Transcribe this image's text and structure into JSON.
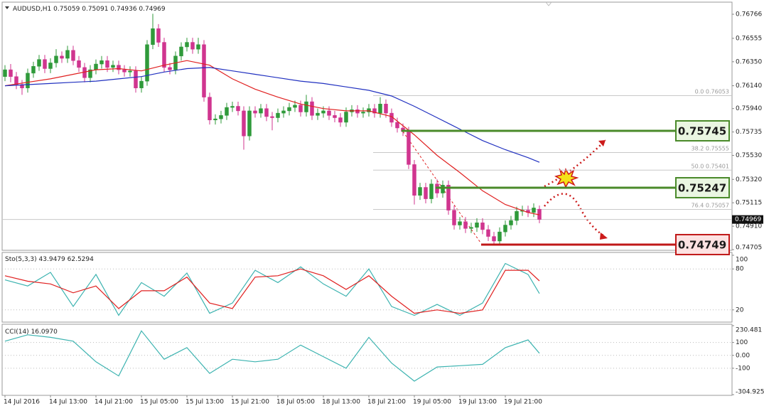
{
  "chart_data": [
    {
      "type": "candlestick",
      "title": "AUDUSD,H1",
      "categories": [
        "14 Jul 2016",
        null,
        null,
        null,
        null,
        null,
        null,
        null,
        "14 Jul 13:00",
        null,
        null,
        null,
        null,
        null,
        null,
        null,
        "14 Jul 21:00",
        null,
        null,
        null,
        null,
        null,
        null,
        null,
        "15 Jul 05:00",
        null,
        null,
        null,
        null,
        null,
        null,
        null,
        "15 Jul 13:00",
        null,
        null,
        null,
        null,
        null,
        null,
        null,
        "15 Jul 21:00",
        null,
        null,
        null,
        null,
        null,
        null,
        null,
        "18 Jul 05:00",
        null,
        null,
        null,
        null,
        null,
        null,
        null,
        "18 Jul 13:00",
        null,
        null,
        null,
        null,
        null,
        null,
        null,
        "18 Jul 21:00",
        null,
        null,
        null,
        null,
        null,
        null,
        null,
        "19 Jul 05:00",
        null,
        null,
        null,
        null,
        null,
        null,
        null,
        "19 Jul 13:00",
        null,
        null,
        null,
        null,
        null,
        null,
        null,
        "19 Jul 21:00",
        null,
        null,
        null,
        null,
        null,
        null
      ],
      "ohlc": [
        [
          0.7622,
          0.7632,
          0.7618,
          0.7628
        ],
        [
          0.7628,
          0.7633,
          0.7617,
          0.7622
        ],
        [
          0.7622,
          0.7626,
          0.7611,
          0.7615
        ],
        [
          0.7615,
          0.7619,
          0.7606,
          0.7612
        ],
        [
          0.7612,
          0.7629,
          0.7608,
          0.7625
        ],
        [
          0.7625,
          0.7635,
          0.7621,
          0.7631
        ],
        [
          0.7631,
          0.7641,
          0.7627,
          0.7637
        ],
        [
          0.7637,
          0.7641,
          0.7625,
          0.7629
        ],
        [
          0.7629,
          0.7638,
          0.7625,
          0.7634
        ],
        [
          0.7634,
          0.7646,
          0.763,
          0.764
        ],
        [
          0.764,
          0.7644,
          0.7634,
          0.7638
        ],
        [
          0.7638,
          0.7649,
          0.7634,
          0.7645
        ],
        [
          0.7645,
          0.7649,
          0.7632,
          0.7636
        ],
        [
          0.7636,
          0.764,
          0.7626,
          0.763
        ],
        [
          0.763,
          0.7634,
          0.7617,
          0.7621
        ],
        [
          0.7621,
          0.7632,
          0.7617,
          0.7628
        ],
        [
          0.7628,
          0.7637,
          0.7624,
          0.7633
        ],
        [
          0.7633,
          0.764,
          0.7629,
          0.7636
        ],
        [
          0.7636,
          0.764,
          0.7626,
          0.763
        ],
        [
          0.763,
          0.7636,
          0.7626,
          0.7632
        ],
        [
          0.7632,
          0.7636,
          0.7624,
          0.7628
        ],
        [
          0.7628,
          0.7632,
          0.7622,
          0.7626
        ],
        [
          0.7626,
          0.7631,
          0.7622,
          0.7627
        ],
        [
          0.7627,
          0.7631,
          0.7608,
          0.7612
        ],
        [
          0.7612,
          0.7622,
          0.7608,
          0.7618
        ],
        [
          0.7618,
          0.7654,
          0.7614,
          0.765
        ],
        [
          0.765,
          0.7677,
          0.7646,
          0.7664
        ],
        [
          0.7664,
          0.7668,
          0.7648,
          0.7652
        ],
        [
          0.7652,
          0.7656,
          0.7626,
          0.763
        ],
        [
          0.763,
          0.7634,
          0.7624,
          0.7628
        ],
        [
          0.7628,
          0.7644,
          0.7624,
          0.764
        ],
        [
          0.764,
          0.7652,
          0.7636,
          0.7648
        ],
        [
          0.7648,
          0.7656,
          0.7644,
          0.7652
        ],
        [
          0.7652,
          0.7656,
          0.7642,
          0.7646
        ],
        [
          0.7646,
          0.7656,
          0.7642,
          0.765
        ],
        [
          0.765,
          0.7654,
          0.76,
          0.7604
        ],
        [
          0.7604,
          0.7608,
          0.758,
          0.7584
        ],
        [
          0.7584,
          0.7589,
          0.758,
          0.7585
        ],
        [
          0.7585,
          0.7592,
          0.7581,
          0.7588
        ],
        [
          0.7588,
          0.7599,
          0.7584,
          0.7595
        ],
        [
          0.7595,
          0.76,
          0.7591,
          0.7596
        ],
        [
          0.7596,
          0.76,
          0.7588,
          0.7592
        ],
        [
          0.7592,
          0.7596,
          0.7558,
          0.757
        ],
        [
          0.757,
          0.7596,
          0.7566,
          0.7592
        ],
        [
          0.7592,
          0.7596,
          0.7586,
          0.759
        ],
        [
          0.759,
          0.7598,
          0.7586,
          0.7594
        ],
        [
          0.7594,
          0.7598,
          0.7583,
          0.7587
        ],
        [
          0.7587,
          0.7591,
          0.7575,
          0.7586
        ],
        [
          0.7586,
          0.7594,
          0.7582,
          0.759
        ],
        [
          0.759,
          0.7596,
          0.7586,
          0.7592
        ],
        [
          0.7592,
          0.7599,
          0.7588,
          0.7595
        ],
        [
          0.7595,
          0.7601,
          0.7591,
          0.7597
        ],
        [
          0.7597,
          0.7601,
          0.7587,
          0.7591
        ],
        [
          0.7591,
          0.7606,
          0.7587,
          0.76
        ],
        [
          0.76,
          0.7604,
          0.7584,
          0.7588
        ],
        [
          0.7588,
          0.7594,
          0.7584,
          0.759
        ],
        [
          0.759,
          0.7596,
          0.7586,
          0.7592
        ],
        [
          0.7592,
          0.7596,
          0.7584,
          0.7588
        ],
        [
          0.7588,
          0.7592,
          0.7582,
          0.7586
        ],
        [
          0.7586,
          0.759,
          0.7578,
          0.7582
        ],
        [
          0.7582,
          0.7595,
          0.7578,
          0.7591
        ],
        [
          0.7591,
          0.7597,
          0.7587,
          0.7593
        ],
        [
          0.7593,
          0.7597,
          0.7586,
          0.759
        ],
        [
          0.759,
          0.7595,
          0.7586,
          0.7591
        ],
        [
          0.7591,
          0.7598,
          0.7587,
          0.7594
        ],
        [
          0.7594,
          0.7598,
          0.7586,
          0.759
        ],
        [
          0.759,
          0.7604,
          0.7586,
          0.7598
        ],
        [
          0.7598,
          0.7602,
          0.7586,
          0.759
        ],
        [
          0.759,
          0.7594,
          0.7578,
          0.7582
        ],
        [
          0.7582,
          0.7586,
          0.7573,
          0.7577
        ],
        [
          0.7577,
          0.7581,
          0.757,
          0.7574
        ],
        [
          0.7574,
          0.7578,
          0.7541,
          0.7545
        ],
        [
          0.7545,
          0.7549,
          0.751,
          0.7518
        ],
        [
          0.7518,
          0.7529,
          0.7514,
          0.7525
        ],
        [
          0.7525,
          0.7529,
          0.7511,
          0.7515
        ],
        [
          0.7515,
          0.7532,
          0.7511,
          0.7528
        ],
        [
          0.7528,
          0.7532,
          0.7516,
          0.752
        ],
        [
          0.752,
          0.7531,
          0.7516,
          0.7527
        ],
        [
          0.7527,
          0.7531,
          0.7501,
          0.7505
        ],
        [
          0.7505,
          0.7509,
          0.7488,
          0.7492
        ],
        [
          0.7492,
          0.7499,
          0.7488,
          0.7495
        ],
        [
          0.7495,
          0.7499,
          0.7485,
          0.7489
        ],
        [
          0.7489,
          0.7494,
          0.7485,
          0.749
        ],
        [
          0.749,
          0.7498,
          0.7486,
          0.7494
        ],
        [
          0.7494,
          0.7498,
          0.7484,
          0.7488
        ],
        [
          0.7488,
          0.7492,
          0.7478,
          0.7482
        ],
        [
          0.7482,
          0.7486,
          0.7474,
          0.7478
        ],
        [
          0.7478,
          0.749,
          0.7474,
          0.7486
        ],
        [
          0.7486,
          0.7496,
          0.7482,
          0.7492
        ],
        [
          0.7492,
          0.75,
          0.7488,
          0.7496
        ],
        [
          0.7496,
          0.7508,
          0.7492,
          0.7504
        ],
        [
          0.7504,
          0.7509,
          0.75,
          0.7505
        ],
        [
          0.7505,
          0.7509,
          0.7499,
          0.7503
        ],
        [
          0.7503,
          0.7511,
          0.7499,
          0.7507
        ],
        [
          0.75059,
          0.75091,
          0.74936,
          0.74969
        ]
      ],
      "up_color": "#2f9a3a",
      "down_color": "#d0358f",
      "series": [
        {
          "color": "#e02020",
          "x": [
            0,
            4,
            8,
            12,
            16,
            20,
            24,
            28,
            32,
            36,
            40,
            44,
            48,
            52,
            56,
            60,
            64,
            68,
            72,
            76,
            80,
            84,
            88,
            92,
            94
          ],
          "values": [
            0.7614,
            0.7617,
            0.762,
            0.7624,
            0.7628,
            0.7629,
            0.7627,
            0.7632,
            0.7636,
            0.7632,
            0.762,
            0.7611,
            0.7604,
            0.7598,
            0.7594,
            0.7592,
            0.7592,
            0.7587,
            0.7571,
            0.7553,
            0.7538,
            0.7522,
            0.751,
            0.7503,
            0.7501
          ]
        },
        {
          "color": "#2030c0",
          "x": [
            0,
            4,
            8,
            12,
            16,
            20,
            24,
            28,
            32,
            36,
            40,
            44,
            48,
            52,
            56,
            60,
            64,
            68,
            72,
            76,
            80,
            84,
            88,
            92,
            94
          ],
          "values": [
            0.7614,
            0.7615,
            0.7616,
            0.7617,
            0.7618,
            0.762,
            0.7622,
            0.7626,
            0.7629,
            0.763,
            0.7627,
            0.7624,
            0.7621,
            0.7618,
            0.7616,
            0.7613,
            0.761,
            0.7605,
            0.7596,
            0.7586,
            0.7576,
            0.7566,
            0.7558,
            0.7551,
            0.7547
          ]
        }
      ],
      "fib": [
        {
          "label": "0.0",
          "value": 0.76053
        },
        {
          "label": "38.2",
          "value": 0.75555
        },
        {
          "label": "50.0",
          "value": 0.75401
        },
        {
          "label": "76.4",
          "value": 0.75057
        }
      ],
      "levels": [
        {
          "value": 0.75745,
          "color": "#4a8a2a",
          "fill": "#eaf6e2"
        },
        {
          "value": 0.75247,
          "color": "#4a8a2a",
          "fill": "#eaf6e2"
        },
        {
          "value": 0.74749,
          "color": "#c01818",
          "fill": "#fde2e2"
        }
      ],
      "ylim": [
        0.74699,
        0.76872
      ],
      "yticks": [
        0.76766,
        0.76555,
        {
          "value": 0.7635,
          "label": "0.76350"
        },
        {
          "value": 0.7614,
          "label": "0.76140"
        },
        {
          "value": 0.7594,
          "label": "0.75940"
        },
        0.75735,
        {
          "value": 0.7553,
          "label": "0.75530"
        },
        {
          "value": 0.7532,
          "label": "0.75320"
        },
        0.75115,
        {
          "value": 0.7491,
          "label": "0.74910"
        },
        0.74705
      ],
      "grid": false
    },
    {
      "type": "line",
      "title": "Sto(5,3,3)",
      "series": [
        {
          "color": "#3cb3b0",
          "x": [
            0,
            4,
            8,
            12,
            16,
            20,
            24,
            28,
            32,
            36,
            40,
            44,
            48,
            52,
            56,
            60,
            64,
            68,
            72,
            76,
            80,
            84,
            88,
            92,
            94
          ],
          "values": [
            64,
            55,
            75,
            25,
            72,
            12,
            60,
            40,
            74,
            15,
            30,
            78,
            60,
            83,
            58,
            40,
            80,
            25,
            12,
            28,
            12,
            30,
            88,
            72,
            43.9479
          ]
        },
        {
          "color": "#e02020",
          "x": [
            0,
            4,
            8,
            12,
            16,
            20,
            24,
            28,
            32,
            36,
            40,
            44,
            48,
            52,
            56,
            60,
            64,
            68,
            72,
            76,
            80,
            84,
            88,
            92,
            94
          ],
          "values": [
            70,
            62,
            58,
            45,
            55,
            22,
            48,
            48,
            68,
            30,
            22,
            68,
            70,
            80,
            70,
            50,
            70,
            40,
            15,
            20,
            15,
            20,
            78,
            78,
            62.5294
          ]
        }
      ],
      "ylim": [
        0,
        100
      ],
      "yticks": [
        100,
        80,
        20
      ],
      "grid": true
    },
    {
      "type": "line",
      "title": "CCI(14)",
      "series": [
        {
          "color": "#3cb3b0",
          "x": [
            0,
            4,
            8,
            12,
            16,
            20,
            24,
            28,
            32,
            36,
            40,
            44,
            48,
            52,
            56,
            60,
            64,
            68,
            72,
            76,
            80,
            84,
            88,
            92,
            94
          ],
          "values": [
            110,
            160,
            140,
            110,
            -50,
            -160,
            190,
            -30,
            60,
            -140,
            -30,
            -50,
            -30,
            80,
            -10,
            -100,
            140,
            -60,
            -200,
            -90,
            -80,
            -70,
            60,
            120,
            16.097
          ],
          "last_label": "16.0970"
        }
      ],
      "ylim": [
        -304.925,
        230.481
      ],
      "yticks": [
        230.481,
        100,
        {
          "value": 0,
          "label": "0.00"
        },
        -100,
        -304.925
      ],
      "grid": true
    }
  ]
}
